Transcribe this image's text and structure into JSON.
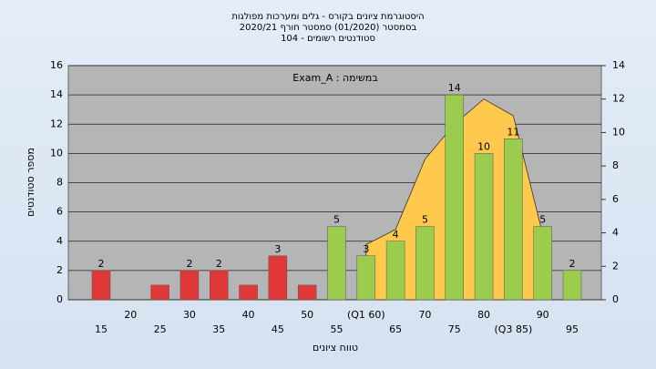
{
  "chart_data": {
    "type": "bar",
    "title": [
      "היסטוגרמת ציונים בקורס - גלים ומערכות מפולגות",
      "בסמסטר (01/2020) סמסטר חורף 2020/21",
      "סטודנטים רשומים - 104"
    ],
    "annotation": "במשימה : Exam_A",
    "xlabel": "טווח ציונים",
    "ylabel": "מספר סטודנטים",
    "categories": [
      "15",
      "20",
      "25",
      "30",
      "35",
      "40",
      "45",
      "50",
      "55",
      "(Q1 60)",
      "65",
      "70",
      "75",
      "80",
      "(Q3 85)",
      "90",
      "95"
    ],
    "series": [
      {
        "values": [
          2,
          0,
          1,
          2,
          2,
          1,
          3,
          1,
          5,
          3,
          4,
          5,
          14,
          10,
          11,
          5,
          2
        ],
        "value_labels": [
          "2",
          null,
          null,
          "2",
          "2",
          null,
          "3",
          null,
          "5",
          "3",
          "4",
          "5",
          "14",
          "10",
          "11",
          "5",
          "2"
        ],
        "colors": [
          "#e03838",
          "#e03838",
          "#e03838",
          "#e03838",
          "#e03838",
          "#e03838",
          "#e03838",
          "#e03838",
          "#9ccc4e",
          "#9ccc4e",
          "#9ccc4e",
          "#9ccc4e",
          "#9ccc4e",
          "#9ccc4e",
          "#9ccc4e",
          "#9ccc4e",
          "#9ccc4e"
        ]
      },
      {
        "axis": "y2",
        "color": "#ffc94d",
        "values": [
          null,
          null,
          null,
          null,
          null,
          null,
          null,
          null,
          null,
          3.3,
          4.2,
          8.4,
          10.5,
          12,
          11,
          3.9,
          null
        ]
      }
    ],
    "ylim": [
      0,
      16
    ],
    "yticks": [
      0,
      2,
      4,
      6,
      8,
      10,
      12,
      14,
      16
    ],
    "y2lim": [
      0,
      14
    ],
    "y2ticks": [
      0,
      2,
      4,
      6,
      8,
      10,
      12,
      14
    ],
    "grid": true
  }
}
